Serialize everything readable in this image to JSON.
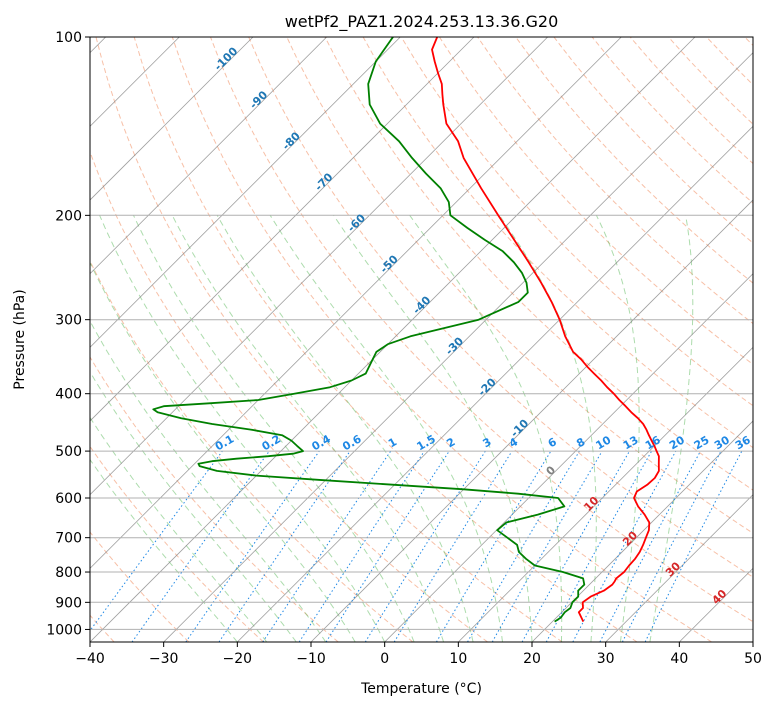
{
  "chart_data": {
    "type": "line",
    "title": "wetPf2_PAZ1.2024.253.13.36.G20",
    "xlabel": "Temperature (°C)",
    "ylabel": "Pressure (hPa)",
    "xlim": [
      -40,
      50
    ],
    "ylim": [
      1050,
      100
    ],
    "y_scale": "log",
    "x_ticks": [
      "−40",
      "−30",
      "−20",
      "−10",
      "0",
      "10",
      "20",
      "30",
      "40",
      "50"
    ],
    "y_ticks": [
      "100",
      "200",
      "300",
      "400",
      "500",
      "600",
      "700",
      "800",
      "900",
      "1000"
    ],
    "grid": true,
    "skew": "skew-T",
    "colors": {
      "temperature": "#ff0000",
      "dewpoint": "#008000",
      "isotherm": "#808080",
      "dry_adiabat": "#f4a582",
      "moist_adiabat": "#6abf69",
      "mixing_ratio": "#1e88e5",
      "dry_adiabat_label": "#d62728",
      "moist_label": "#1f77b4"
    },
    "series": [
      {
        "pressure": [
          970,
          955,
          935,
          920,
          900,
          880,
          860,
          840,
          830,
          820,
          800,
          780,
          760,
          740,
          720,
          700,
          680,
          660,
          640,
          620,
          600,
          585,
          570,
          555,
          540,
          525,
          510,
          500,
          490,
          480,
          470,
          460,
          450,
          440,
          430,
          420,
          410,
          400,
          390,
          380,
          370,
          360,
          350,
          340,
          320,
          300,
          280,
          260,
          240,
          220,
          200,
          180,
          160,
          150,
          140,
          130,
          125,
          120,
          115,
          110,
          105,
          100
        ],
        "temperature": [
          24.2,
          23.4,
          22.3,
          22.3,
          21.5,
          21.8,
          22.8,
          23.1,
          23.0,
          22.8,
          23.0,
          22.8,
          22.7,
          22.4,
          21.9,
          21.3,
          20.7,
          19.7,
          18.0,
          16.0,
          14.3,
          13.8,
          14.3,
          14.4,
          14.0,
          13.0,
          12.0,
          11.0,
          10.0,
          8.9,
          7.8,
          6.7,
          5.5,
          4.0,
          2.3,
          0.7,
          -1.0,
          -2.6,
          -4.4,
          -6.1,
          -8.0,
          -9.9,
          -11.7,
          -13.8,
          -17.0,
          -20.0,
          -23.5,
          -27.5,
          -32.0,
          -37.0,
          -42.5,
          -48.5,
          -55.0,
          -58.0,
          -62.0,
          -65.0,
          -66.5,
          -68.0,
          -70.0,
          -72.0,
          -74.0,
          -75.0
        ]
      },
      {
        "pressure": [
          970,
          955,
          935,
          920,
          900,
          880,
          860,
          840,
          820,
          800,
          780,
          760,
          740,
          720,
          700,
          680,
          660,
          640,
          620,
          600,
          590,
          580,
          570,
          560,
          550,
          540,
          530,
          525,
          520,
          515,
          510,
          505,
          500,
          490,
          480,
          470,
          460,
          450,
          440,
          430,
          425,
          420,
          415,
          410,
          400,
          390,
          380,
          370,
          360,
          350,
          340,
          330,
          320,
          300,
          280,
          270,
          260,
          250,
          240,
          230,
          220,
          210,
          200,
          190,
          180,
          170,
          160,
          150,
          140,
          130,
          120,
          110,
          100
        ],
        "temperature": [
          20.3,
          20.6,
          20.4,
          20.6,
          20.1,
          20.1,
          19.3,
          19.3,
          18.3,
          14.7,
          10.0,
          7.9,
          6.0,
          4.8,
          2.5,
          0.1,
          0.3,
          3.5,
          6.0,
          4.0,
          -2.0,
          -10.0,
          -20.0,
          -30.0,
          -40.0,
          -46.0,
          -49.0,
          -49.5,
          -48.0,
          -45.0,
          -41.0,
          -38.0,
          -37.0,
          -38.5,
          -40.0,
          -42.0,
          -47.0,
          -53.0,
          -58.0,
          -62.0,
          -63.0,
          -62.0,
          -56.0,
          -50.0,
          -46.0,
          -42.0,
          -40.0,
          -39.0,
          -39.5,
          -40.0,
          -40.5,
          -40.0,
          -38.0,
          -31.0,
          -28.0,
          -28.0,
          -29.5,
          -31.5,
          -34.0,
          -37.0,
          -41.0,
          -45.0,
          -49.0,
          -51.0,
          -54.0,
          -58.0,
          -62.0,
          -66.0,
          -71.0,
          -75.0,
          -78.0,
          -80.0,
          -81.0
        ]
      }
    ],
    "isotherm_labels": [
      "-100",
      "-90",
      "-80",
      "-70",
      "-60",
      "-50",
      "-40",
      "-30",
      "-20",
      "-10",
      "0",
      "10",
      "20",
      "30",
      "40"
    ],
    "isotherm_label_values": [
      -100,
      -90,
      -80,
      -70,
      -60,
      -50,
      -40,
      -30,
      -20,
      -10,
      0,
      10,
      20,
      30,
      40
    ],
    "mixing_ratio_labels": [
      "0.1",
      "0.2",
      "0.4",
      "0.6",
      "1",
      "1.5",
      "2",
      "3",
      "4",
      "6",
      "8",
      "10",
      "13",
      "16",
      "20",
      "25",
      "30",
      "36"
    ],
    "mixing_ratio_values": [
      0.1,
      0.2,
      0.4,
      0.6,
      1,
      1.5,
      2,
      3,
      4,
      6,
      8,
      10,
      13,
      16,
      20,
      25,
      30,
      36
    ]
  }
}
